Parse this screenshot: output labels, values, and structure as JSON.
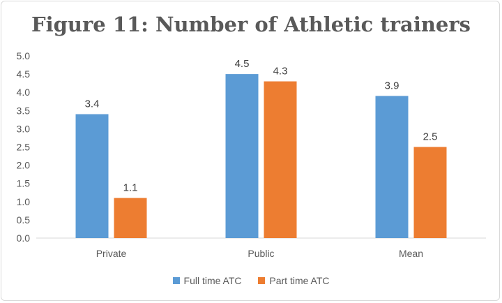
{
  "chart_data": {
    "type": "bar",
    "title": "Figure 11: Number of Athletic trainers",
    "categories": [
      "Private",
      "Public",
      "Mean"
    ],
    "series": [
      {
        "name": "Full time ATC",
        "values": [
          3.4,
          4.5,
          3.9
        ],
        "labels": [
          "3.4",
          "4.5",
          "3.9"
        ],
        "color": "#5b9bd5"
      },
      {
        "name": "Part time ATC",
        "values": [
          1.1,
          4.3,
          2.5
        ],
        "labels": [
          "1.1",
          "4.3",
          "2.5"
        ],
        "color": "#ed7d31"
      }
    ],
    "yticks": [
      "0.0",
      "0.5",
      "1.0",
      "1.5",
      "2.0",
      "2.5",
      "3.0",
      "3.5",
      "4.0",
      "4.5",
      "5.0"
    ],
    "ylim": [
      0,
      5
    ],
    "grid": false,
    "legend_position": "bottom"
  }
}
